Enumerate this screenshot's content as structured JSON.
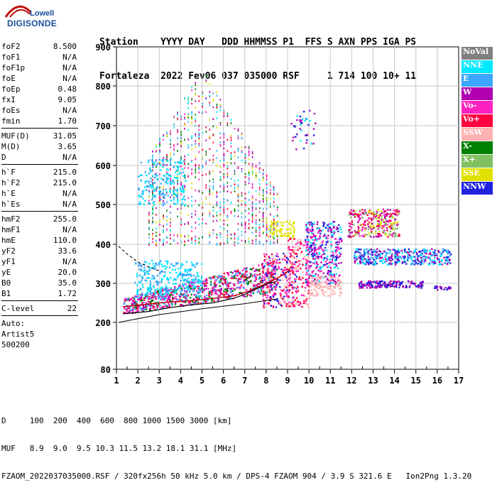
{
  "logo": {
    "line1": "Lowell",
    "line2": "DIGISONDE"
  },
  "header": {
    "line1": "Station    YYYY DAY   DDD HHMMSS P1  FFS S AXN PPS IGA PS",
    "line2": "Fortaleza  2022 Fev06 037 035000 RSF     1 714 100 10+ 11"
  },
  "params": {
    "group1": [
      {
        "label": "foF2",
        "value": "8.500"
      },
      {
        "label": "foF1",
        "value": "N/A"
      },
      {
        "label": "foF1p",
        "value": "N/A"
      },
      {
        "label": "foE",
        "value": "N/A"
      },
      {
        "label": "foEp",
        "value": "0.48"
      },
      {
        "label": "fxI",
        "value": "9.05"
      },
      {
        "label": "foEs",
        "value": "N/A"
      },
      {
        "label": "fmin",
        "value": "1.70"
      }
    ],
    "group2": [
      {
        "label": "MUF(D)",
        "value": "31.05"
      },
      {
        "label": "M(D)",
        "value": "3.65"
      },
      {
        "label": "D",
        "value": "N/A"
      }
    ],
    "group3": [
      {
        "label": "h`F",
        "value": "215.0"
      },
      {
        "label": "h`F2",
        "value": "215.0"
      },
      {
        "label": "h`E",
        "value": "N/A"
      },
      {
        "label": "h`Es",
        "value": "N/A"
      }
    ],
    "group4": [
      {
        "label": "hmF2",
        "value": "255.0"
      },
      {
        "label": "hmF1",
        "value": "N/A"
      },
      {
        "label": "hmE",
        "value": "110.0"
      },
      {
        "label": "yF2",
        "value": "33.6"
      },
      {
        "label": "yF1",
        "value": "N/A"
      },
      {
        "label": "yE",
        "value": "20.0"
      },
      {
        "label": "B0",
        "value": "35.0"
      },
      {
        "label": "B1",
        "value": "1.72"
      }
    ],
    "clevel": {
      "label": "C-level",
      "value": "22"
    },
    "auto": [
      "Auto:",
      "Artist5",
      "500200"
    ]
  },
  "legend": [
    {
      "label": "NoVal",
      "color": "#808080"
    },
    {
      "label": "NNE",
      "color": "#00e8ff"
    },
    {
      "label": "E",
      "color": "#3aa6ff"
    },
    {
      "label": "W",
      "color": "#b000b0"
    },
    {
      "label": "Vo-",
      "color": "#ff20c0"
    },
    {
      "label": "Vo+",
      "color": "#ff0040"
    },
    {
      "label": "SSW",
      "color": "#ffb0b0"
    },
    {
      "label": "X-",
      "color": "#008000"
    },
    {
      "label": "X+",
      "color": "#80c060"
    },
    {
      "label": "SSE",
      "color": "#e0e000"
    },
    {
      "label": "NNW",
      "color": "#2020e0"
    }
  ],
  "footer": {
    "line1": "D     100  200  400  600  800 1000 1500 3000 [km]",
    "line2": "MUF   8.9  9.0  9.5 10.3 11.5 13.2 18.1 31.1 [MHz]",
    "line3": "FZAOM_2022037035000.RSF / 320fx256h 50 kHz 5.0 km / DPS-4 FZAOM 904 / 3.9 S 321.6 E   Ion2Png 1.3.20"
  },
  "chart_data": {
    "type": "scatter",
    "xlim": [
      1,
      17
    ],
    "ylim": [
      80,
      900
    ],
    "xticks": [
      "1",
      "2",
      "3",
      "4",
      "5",
      "6",
      "7",
      "8",
      "9",
      "10",
      "11",
      "12",
      "13",
      "14",
      "15",
      "16",
      "17"
    ],
    "yticks": [
      "80",
      "200",
      "300",
      "400",
      "500",
      "600",
      "700",
      "800",
      "900"
    ],
    "grid": true,
    "traces": {
      "dashed_profile": [
        [
          1.1,
          395
        ],
        [
          1.5,
          375
        ],
        [
          2.0,
          355
        ],
        [
          2.5,
          342
        ],
        [
          3.0,
          332
        ]
      ],
      "solid_lower": [
        [
          1.1,
          200
        ],
        [
          3,
          220
        ],
        [
          5,
          235
        ],
        [
          7,
          248
        ],
        [
          8.5,
          260
        ]
      ],
      "solid_upper": [
        [
          1.3,
          222
        ],
        [
          2.5,
          228
        ],
        [
          3.5,
          238
        ],
        [
          4.5,
          245
        ],
        [
          5.5,
          250
        ],
        [
          6.5,
          262
        ],
        [
          7.0,
          272
        ],
        [
          7.5,
          285
        ],
        [
          7.8,
          292
        ],
        [
          8.1,
          300
        ],
        [
          8.5,
          305
        ]
      ],
      "muf_profile": [
        [
          1.3,
          240
        ],
        [
          3,
          250
        ],
        [
          5,
          258
        ],
        [
          6.5,
          268
        ],
        [
          7.3,
          282
        ],
        [
          8.0,
          300
        ],
        [
          8.5,
          312
        ],
        [
          9.0,
          330
        ],
        [
          9.2,
          345
        ]
      ]
    },
    "clusters": [
      {
        "name": "F-low",
        "x": [
          1.3,
          8.5
        ],
        "y": [
          218,
          320
        ],
        "colors": [
          "#ff20c0",
          "#ff0040",
          "#b000b0",
          "#008000",
          "#3aa6ff"
        ],
        "n": 900
      },
      {
        "name": "F-rising",
        "x": [
          7.8,
          9.4
        ],
        "y": [
          240,
          380
        ],
        "colors": [
          "#ff20c0",
          "#ff0040",
          "#ffb0b0",
          "#2020e0"
        ],
        "n": 260
      },
      {
        "name": "O-cusp",
        "x": [
          9.0,
          10.0
        ],
        "y": [
          240,
          420
        ],
        "colors": [
          "#ff20c0",
          "#ff0040",
          "#ffb0b0"
        ],
        "n": 160
      },
      {
        "name": "ripples-2F",
        "x": [
          2.5,
          8.5
        ],
        "y": [
          400,
          850
        ],
        "colors": [
          "#ff20c0",
          "#b000b0",
          "#008000",
          "#e0e000",
          "#00e8ff",
          "#3aa6ff",
          "#ff0040"
        ],
        "n": 1100
      },
      {
        "name": "spread-low-E",
        "x": [
          1.8,
          5.0
        ],
        "y": [
          270,
          360
        ],
        "colors": [
          "#3aa6ff",
          "#00e8ff"
        ],
        "n": 300
      },
      {
        "name": "spread-mid",
        "x": [
          2.0,
          4.2
        ],
        "y": [
          500,
          620
        ],
        "colors": [
          "#3aa6ff",
          "#00e8ff"
        ],
        "n": 200
      },
      {
        "name": "SSE-patch",
        "x": [
          8.0,
          9.3
        ],
        "y": [
          420,
          460
        ],
        "colors": [
          "#e0e000"
        ],
        "n": 70
      },
      {
        "name": "W-cluster",
        "x": [
          9.8,
          11.5
        ],
        "y": [
          300,
          460
        ],
        "colors": [
          "#2020e0",
          "#b000b0",
          "#ff20c0",
          "#00e8ff"
        ],
        "n": 380
      },
      {
        "name": "SSW-cluster",
        "x": [
          10.0,
          11.5
        ],
        "y": [
          270,
          320
        ],
        "colors": [
          "#ffb0b0"
        ],
        "n": 120
      },
      {
        "name": "far-W-upper",
        "x": [
          11.8,
          14.2
        ],
        "y": [
          420,
          490
        ],
        "colors": [
          "#ff20c0",
          "#e0e000",
          "#b000b0",
          "#ff0040",
          "#80c060"
        ],
        "n": 320
      },
      {
        "name": "far-E-mid",
        "x": [
          12.0,
          16.6
        ],
        "y": [
          350,
          390
        ],
        "colors": [
          "#3aa6ff",
          "#2020e0",
          "#00e8ff",
          "#b000b0"
        ],
        "n": 420
      },
      {
        "name": "far-NNW-low",
        "x": [
          12.3,
          15.3
        ],
        "y": [
          290,
          308
        ],
        "colors": [
          "#2020e0",
          "#b000b0"
        ],
        "n": 160
      },
      {
        "name": "far-tail",
        "x": [
          15.8,
          16.6
        ],
        "y": [
          285,
          295
        ],
        "colors": [
          "#b000b0",
          "#2020e0"
        ],
        "n": 20
      },
      {
        "name": "high-W-column",
        "x": [
          9.1,
          10.3
        ],
        "y": [
          640,
          740
        ],
        "colors": [
          "#2020e0",
          "#b000b0",
          "#00e8ff"
        ],
        "n": 40
      }
    ]
  }
}
